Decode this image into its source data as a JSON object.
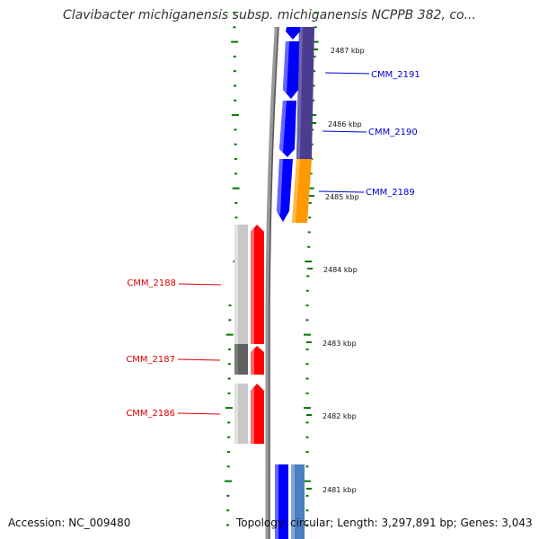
{
  "title": "Clavibacter michiganensis subsp. michiganensis NCPPB 382, co...",
  "footer": {
    "accession": "Accession: NC_009480",
    "summary": "Topology: circular; Length: 3,297,891 bp; Genes: 3,043"
  },
  "scale_ticks": [
    "2487 kbp",
    "2486 kbp",
    "2485 kbp",
    "2484 kbp",
    "2483 kbp",
    "2482 kbp",
    "2481 kbp"
  ],
  "genes": [
    {
      "label": "CMM_2191",
      "strand": "forward",
      "color": "#0000cc"
    },
    {
      "label": "CMM_2190",
      "strand": "forward",
      "color": "#0000cc"
    },
    {
      "label": "CMM_2189",
      "strand": "forward",
      "color": "#0000cc"
    },
    {
      "label": "CMM_2188",
      "strand": "reverse",
      "color": "#dd0000"
    },
    {
      "label": "CMM_2187",
      "strand": "reverse",
      "color": "#dd0000"
    },
    {
      "label": "CMM_2186",
      "strand": "reverse",
      "color": "#dd0000"
    }
  ],
  "colors": {
    "forward_cds": "#0000ff",
    "reverse_cds": "#ff0000",
    "forward_label": "#0000cc",
    "reverse_label": "#dd0000",
    "tick_green": "#007700",
    "backbone": "#888888",
    "cog_purple": "#4a3d8f",
    "cog_orange": "#ff9900",
    "cog_gray_light": "#c8c8c8",
    "cog_gray_dark": "#606060",
    "cog_steelblue": "#4a80c0"
  }
}
